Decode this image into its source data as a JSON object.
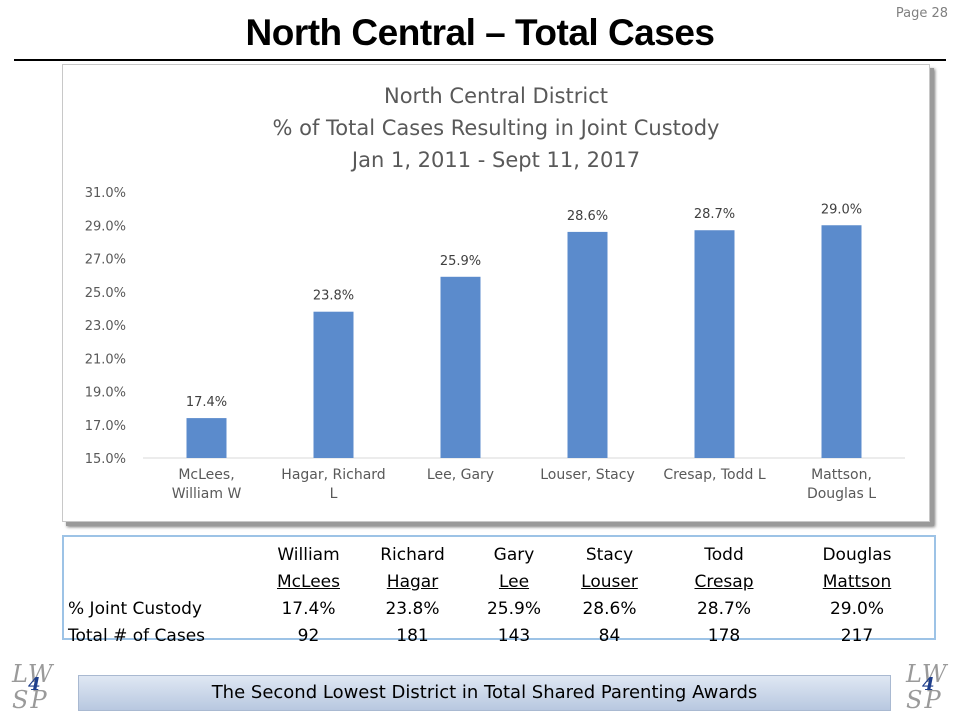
{
  "slide": {
    "title": "North Central – Total Cases",
    "page_label": "Page 28",
    "footer_text": "The Second Lowest District in Total Shared Parenting Awards",
    "logo": {
      "top": "LW",
      "bottom": "SP",
      "number": "4"
    }
  },
  "chart_data": {
    "type": "bar",
    "title_lines": [
      "North Central District",
      "% of Total Cases Resulting in Joint Custody",
      "Jan 1, 2011 - Sept 11, 2017"
    ],
    "categories": [
      [
        "McLees,",
        "William W"
      ],
      [
        "Hagar, Richard",
        "L"
      ],
      [
        "Lee, Gary"
      ],
      [
        "Louser, Stacy"
      ],
      [
        "Cresap, Todd L"
      ],
      [
        "Mattson,",
        "Douglas L"
      ]
    ],
    "values": [
      17.4,
      23.8,
      25.9,
      28.6,
      28.7,
      29.0
    ],
    "data_labels": [
      "17.4%",
      "23.8%",
      "25.9%",
      "28.6%",
      "28.7%",
      "29.0%"
    ],
    "ylim": [
      15,
      31
    ],
    "yticks": [
      15,
      17,
      19,
      21,
      23,
      25,
      27,
      29,
      31
    ],
    "ytick_labels": [
      "15.0%",
      "17.0%",
      "19.0%",
      "21.0%",
      "23.0%",
      "25.0%",
      "27.0%",
      "29.0%",
      "31.0%"
    ],
    "bar_color": "#5b8bcc",
    "grid": false,
    "legend": "none"
  },
  "table": {
    "header_first": [
      "William",
      "Richard",
      "Gary",
      "Stacy",
      "Todd",
      "Douglas"
    ],
    "header_last": [
      "McLees",
      "Hagar",
      "Lee",
      "Louser",
      "Cresap",
      "Mattson"
    ],
    "rows": [
      {
        "label": "% Joint Custody",
        "values": [
          "17.4%",
          "23.8%",
          "25.9%",
          "28.6%",
          "28.7%",
          "29.0%"
        ]
      },
      {
        "label": "Total # of Cases",
        "values": [
          "92",
          "181",
          "143",
          "84",
          "178",
          "217"
        ]
      }
    ]
  }
}
